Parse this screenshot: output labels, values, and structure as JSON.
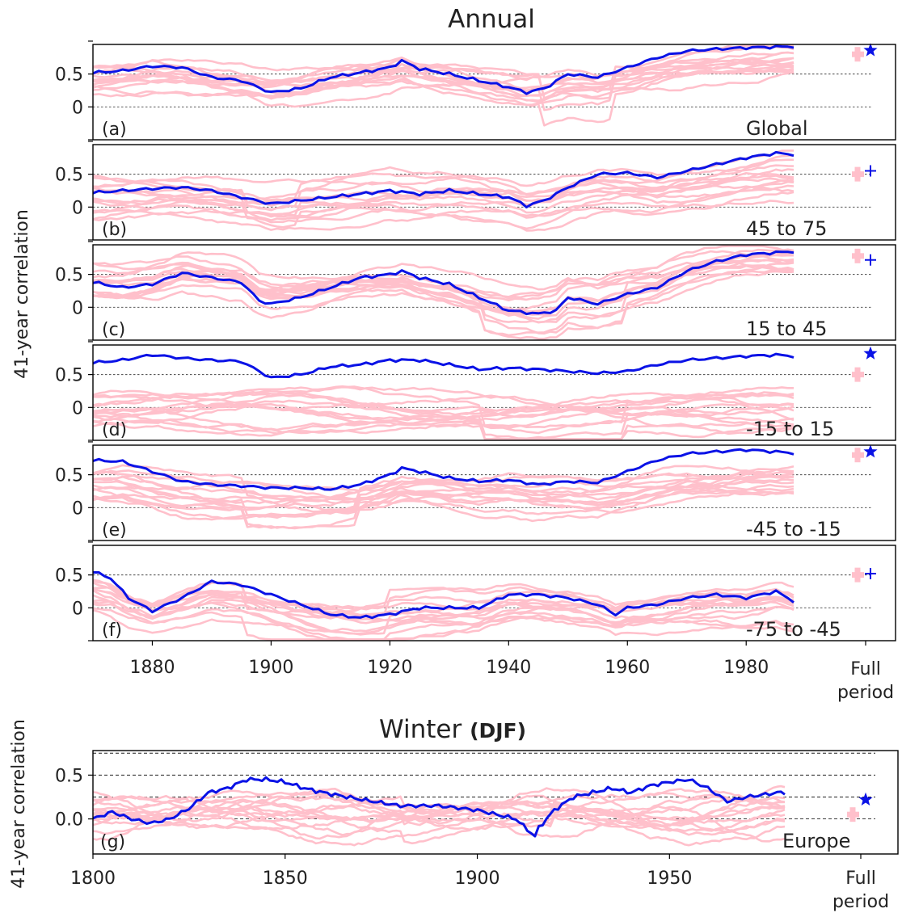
{
  "annual": {
    "title": "Annual",
    "ylabel": "41-year correlation",
    "xticks": [
      "1880",
      "1900",
      "1920",
      "1940",
      "1960",
      "1980"
    ],
    "full_period_label": [
      "Full",
      "period"
    ],
    "yticks": [
      "0.5",
      "0"
    ],
    "panels": [
      {
        "id": "a",
        "label": "(a)",
        "region": "Global",
        "marker": "star"
      },
      {
        "id": "b",
        "label": "(b)",
        "region": "45 to 75",
        "marker": "plus"
      },
      {
        "id": "c",
        "label": "(c)",
        "region": "15 to 45",
        "marker": "plus"
      },
      {
        "id": "d",
        "label": "(d)",
        "region": "-15 to 15",
        "marker": "star"
      },
      {
        "id": "e",
        "label": "(e)",
        "region": "-45 to -15",
        "marker": "star"
      },
      {
        "id": "f",
        "label": "(f)",
        "region": "-75 to -45",
        "marker": "plus"
      }
    ]
  },
  "winter": {
    "title_plain": "Winter",
    "title_bold": "(DJF)",
    "ylabel": "41-year correlation",
    "xticks": [
      "1800",
      "1850",
      "1900",
      "1950"
    ],
    "full_period_label": [
      "Full",
      "period"
    ],
    "yticks": [
      "0.5",
      "0.0"
    ],
    "panel": {
      "id": "g",
      "label": "(g)",
      "region": "Europe",
      "marker": "star"
    }
  },
  "colors": {
    "observed": "#0a12e6",
    "ensemble": "#ffc0cb",
    "frame": "#000000"
  },
  "chart_data": [
    {
      "type": "line",
      "panel": "a",
      "title": "Annual",
      "ylabel": "41-year correlation",
      "xlim": [
        1870,
        1988
      ],
      "ylim": [
        -0.5,
        0.95
      ],
      "observed": {
        "x": [
          1870,
          1875,
          1880,
          1885,
          1890,
          1895,
          1900,
          1905,
          1910,
          1915,
          1920,
          1922,
          1925,
          1930,
          1935,
          1940,
          1943,
          1946,
          1950,
          1955,
          1960,
          1965,
          1970,
          1975,
          1980,
          1988
        ],
        "y": [
          0.52,
          0.55,
          0.62,
          0.6,
          0.45,
          0.4,
          0.22,
          0.28,
          0.45,
          0.52,
          0.6,
          0.7,
          0.58,
          0.5,
          0.4,
          0.3,
          0.22,
          0.28,
          0.5,
          0.45,
          0.6,
          0.75,
          0.85,
          0.88,
          0.9,
          0.92
        ]
      },
      "ensemble": {
        "band_mid": [
          0.3,
          0.4,
          0.45,
          0.35,
          0.3,
          0.35,
          0.3,
          0.2,
          0.15,
          0.3,
          0.5,
          0.7
        ],
        "full_period_observed": 0.86,
        "full_period_ensemble": 0.8
      }
    },
    {
      "type": "line",
      "panel": "b",
      "xlim": [
        1870,
        1988
      ],
      "ylim": [
        -0.5,
        0.95
      ],
      "observed": {
        "x": [
          1870,
          1875,
          1880,
          1885,
          1890,
          1895,
          1900,
          1905,
          1910,
          1915,
          1920,
          1925,
          1930,
          1935,
          1940,
          1943,
          1946,
          1950,
          1955,
          1960,
          1965,
          1970,
          1975,
          1980,
          1985,
          1988
        ],
        "y": [
          0.22,
          0.25,
          0.28,
          0.3,
          0.25,
          0.15,
          0.05,
          0.1,
          0.15,
          0.2,
          0.25,
          0.2,
          0.25,
          0.2,
          0.15,
          0.02,
          0.1,
          0.3,
          0.5,
          0.52,
          0.45,
          0.55,
          0.65,
          0.75,
          0.82,
          0.8
        ]
      },
      "ensemble": {
        "full_period_observed": 0.55,
        "full_period_ensemble": 0.5
      }
    },
    {
      "type": "line",
      "panel": "c",
      "xlim": [
        1870,
        1988
      ],
      "ylim": [
        -0.5,
        0.95
      ],
      "observed": {
        "x": [
          1870,
          1875,
          1880,
          1885,
          1890,
          1895,
          1898,
          1900,
          1905,
          1910,
          1915,
          1920,
          1922,
          1925,
          1930,
          1935,
          1940,
          1945,
          1948,
          1950,
          1955,
          1960,
          1965,
          1970,
          1975,
          1980,
          1988
        ],
        "y": [
          0.38,
          0.3,
          0.35,
          0.52,
          0.45,
          0.38,
          0.1,
          0.05,
          0.15,
          0.3,
          0.45,
          0.5,
          0.55,
          0.45,
          0.35,
          0.15,
          -0.05,
          -0.1,
          -0.05,
          0.15,
          0.05,
          0.2,
          0.3,
          0.55,
          0.7,
          0.8,
          0.85
        ]
      },
      "ensemble": {
        "full_period_observed": 0.72,
        "full_period_ensemble": 0.78
      }
    },
    {
      "type": "line",
      "panel": "d",
      "xlim": [
        1870,
        1988
      ],
      "ylim": [
        -0.5,
        0.95
      ],
      "observed": {
        "x": [
          1870,
          1875,
          1880,
          1885,
          1890,
          1895,
          1900,
          1905,
          1910,
          1915,
          1920,
          1925,
          1930,
          1935,
          1940,
          1945,
          1950,
          1955,
          1960,
          1965,
          1970,
          1975,
          1980,
          1985,
          1988
        ],
        "y": [
          0.68,
          0.72,
          0.8,
          0.75,
          0.72,
          0.7,
          0.45,
          0.5,
          0.62,
          0.65,
          0.72,
          0.72,
          0.65,
          0.58,
          0.6,
          0.58,
          0.55,
          0.52,
          0.55,
          0.65,
          0.72,
          0.75,
          0.78,
          0.8,
          0.78
        ]
      },
      "ensemble": {
        "full_period_observed": 0.82,
        "full_period_ensemble": 0.5
      }
    },
    {
      "type": "line",
      "panel": "e",
      "xlim": [
        1870,
        1988
      ],
      "ylim": [
        -0.5,
        0.95
      ],
      "observed": {
        "x": [
          1870,
          1875,
          1880,
          1885,
          1890,
          1895,
          1900,
          1905,
          1910,
          1915,
          1920,
          1922,
          1925,
          1930,
          1935,
          1940,
          1945,
          1950,
          1955,
          1960,
          1965,
          1970,
          1975,
          1980,
          1985,
          1988
        ],
        "y": [
          0.72,
          0.7,
          0.55,
          0.4,
          0.35,
          0.33,
          0.3,
          0.3,
          0.28,
          0.35,
          0.5,
          0.6,
          0.55,
          0.45,
          0.4,
          0.42,
          0.35,
          0.4,
          0.38,
          0.55,
          0.72,
          0.82,
          0.85,
          0.88,
          0.85,
          0.83
        ]
      },
      "ensemble": {
        "full_period_observed": 0.85,
        "full_period_ensemble": 0.8
      }
    },
    {
      "type": "line",
      "panel": "f",
      "xlim": [
        1870,
        1988
      ],
      "ylim": [
        -0.5,
        0.95
      ],
      "observed": {
        "x": [
          1870,
          1873,
          1876,
          1880,
          1885,
          1890,
          1895,
          1900,
          1905,
          1910,
          1915,
          1920,
          1925,
          1930,
          1935,
          1940,
          1945,
          1950,
          1955,
          1958,
          1960,
          1965,
          1970,
          1975,
          1980,
          1985,
          1988
        ],
        "y": [
          0.55,
          0.45,
          0.15,
          -0.05,
          0.15,
          0.4,
          0.35,
          0.2,
          0.05,
          -0.1,
          -0.15,
          -0.1,
          0.0,
          0.0,
          0.0,
          0.2,
          0.2,
          0.15,
          0.05,
          -0.1,
          0.0,
          0.05,
          0.15,
          0.2,
          0.15,
          0.25,
          0.1
        ]
      },
      "ensemble": {
        "full_period_observed": 0.52,
        "full_period_ensemble": 0.5
      }
    },
    {
      "type": "line",
      "panel": "g",
      "title": "Winter (DJF)",
      "ylabel": "41-year correlation",
      "xlim": [
        1800,
        1980
      ],
      "ylim": [
        -0.4,
        0.78
      ],
      "observed": {
        "x": [
          1800,
          1805,
          1810,
          1815,
          1820,
          1825,
          1830,
          1835,
          1840,
          1845,
          1850,
          1855,
          1860,
          1870,
          1880,
          1890,
          1900,
          1905,
          1910,
          1915,
          1916,
          1920,
          1925,
          1930,
          1935,
          1940,
          1945,
          1950,
          1955,
          1960,
          1965,
          1970,
          1975,
          1978
        ],
        "y": [
          0.0,
          0.08,
          0.0,
          -0.05,
          0.0,
          0.12,
          0.3,
          0.35,
          0.45,
          0.45,
          0.42,
          0.35,
          0.3,
          0.22,
          0.15,
          0.15,
          0.1,
          0.05,
          0.0,
          -0.2,
          -0.1,
          0.1,
          0.25,
          0.3,
          0.35,
          0.3,
          0.38,
          0.42,
          0.45,
          0.35,
          0.2,
          0.25,
          0.28,
          0.3
        ]
      },
      "ensemble": {
        "full_period_observed": 0.22,
        "full_period_ensemble": 0.05
      }
    }
  ]
}
